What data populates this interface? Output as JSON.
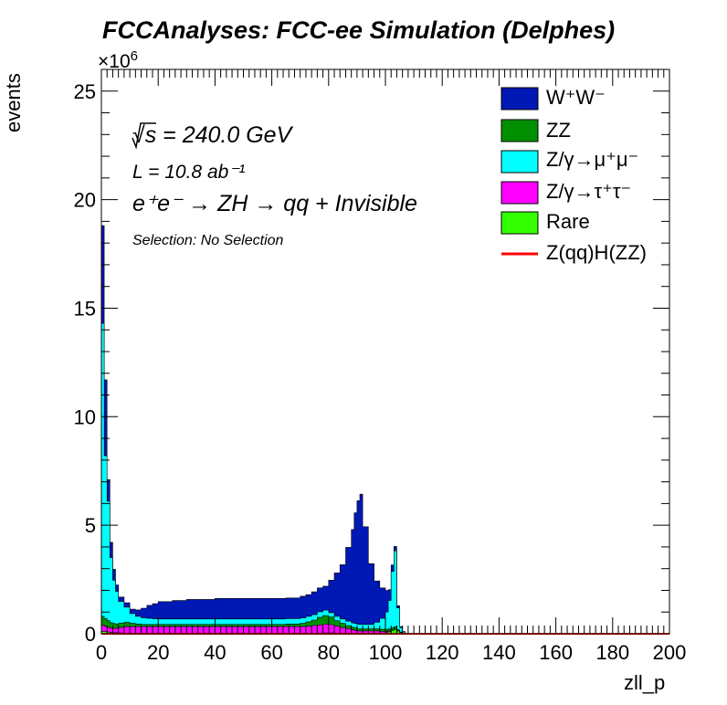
{
  "chart_data": {
    "type": "bar",
    "title": "FCCAnalyses: FCC-ee Simulation (Delphes)",
    "xlabel": "zll_p",
    "ylabel": "events",
    "y_multiplier": "×10^6",
    "xlim": [
      0,
      200
    ],
    "ylim": [
      0,
      26
    ],
    "x_ticks": [
      "0",
      "20",
      "40",
      "60",
      "80",
      "100",
      "120",
      "140",
      "160",
      "180",
      "200"
    ],
    "y_ticks": [
      "0",
      "5",
      "10",
      "15",
      "20",
      "25"
    ],
    "stacked": true,
    "legend_position": "top-right",
    "annotations": {
      "energy": "√s = 240.0 GeV",
      "lumi": "L = 10.8 ab⁻¹",
      "process": "e⁺e⁻ → ZH → qq + Invisible",
      "selection": "Selection: No Selection"
    },
    "x": [
      0,
      1,
      2,
      3,
      4,
      5,
      6,
      8,
      10,
      12,
      14,
      16,
      18,
      20,
      25,
      30,
      40,
      50,
      60,
      65,
      70,
      72,
      74,
      76,
      78,
      80,
      82,
      84,
      86,
      88,
      89,
      90,
      91,
      92,
      94,
      96,
      98,
      100,
      101,
      102,
      103,
      104,
      105,
      106,
      107,
      108,
      110,
      120,
      140,
      160,
      180,
      200
    ],
    "series": [
      {
        "name": "Rare",
        "color": "#33ff00",
        "values": [
          0.1,
          0.1,
          0.08,
          0.06,
          0.05,
          0.05,
          0.04,
          0.03,
          0.03,
          0.03,
          0.03,
          0.03,
          0.03,
          0.03,
          0.03,
          0.03,
          0.03,
          0.03,
          0.03,
          0.03,
          0.03,
          0.03,
          0.03,
          0.03,
          0.04,
          0.04,
          0.03,
          0.03,
          0.03,
          0.03,
          0.03,
          0.03,
          0.03,
          0.03,
          0.03,
          0.03,
          0.03,
          0.05,
          0.1,
          0.15,
          0.2,
          0.12,
          0.05,
          0.02,
          0.01,
          0,
          0,
          0,
          0,
          0,
          0,
          0
        ]
      },
      {
        "name": "Z/γ→τ⁺τ⁻",
        "color": "#ff00ff",
        "values": [
          0.3,
          0.25,
          0.22,
          0.2,
          0.2,
          0.2,
          0.25,
          0.3,
          0.3,
          0.3,
          0.3,
          0.3,
          0.3,
          0.3,
          0.3,
          0.3,
          0.3,
          0.3,
          0.3,
          0.3,
          0.3,
          0.32,
          0.35,
          0.38,
          0.4,
          0.38,
          0.32,
          0.25,
          0.2,
          0.15,
          0.12,
          0.1,
          0.1,
          0.1,
          0.1,
          0.1,
          0.08,
          0.05,
          0.03,
          0.02,
          0.02,
          0.02,
          0.01,
          0,
          0,
          0,
          0,
          0,
          0,
          0,
          0,
          0
        ]
      },
      {
        "name": "ZZ",
        "color": "#008f00",
        "values": [
          0.4,
          0.35,
          0.3,
          0.25,
          0.22,
          0.2,
          0.2,
          0.2,
          0.15,
          0.12,
          0.1,
          0.1,
          0.1,
          0.1,
          0.1,
          0.1,
          0.1,
          0.1,
          0.1,
          0.12,
          0.15,
          0.2,
          0.25,
          0.35,
          0.4,
          0.35,
          0.25,
          0.2,
          0.15,
          0.12,
          0.12,
          0.1,
          0.1,
          0.1,
          0.1,
          0.1,
          0.1,
          0.1,
          0.1,
          0.1,
          0.1,
          0.05,
          0.02,
          0.01,
          0,
          0,
          0,
          0,
          0,
          0,
          0,
          0
        ]
      },
      {
        "name": "Z/γ→μ⁺μ⁻",
        "color": "#00ffff",
        "values": [
          13.5,
          7.5,
          5.5,
          3,
          2,
          1.5,
          1.0,
          0.7,
          0.45,
          0.35,
          0.3,
          0.28,
          0.26,
          0.25,
          0.25,
          0.25,
          0.25,
          0.25,
          0.25,
          0.25,
          0.25,
          0.25,
          0.25,
          0.25,
          0.25,
          0.2,
          0.2,
          0.2,
          0.2,
          0.2,
          0.2,
          0.2,
          0.2,
          0.2,
          0.2,
          0.3,
          0.5,
          0.8,
          1.3,
          2.6,
          3.5,
          1.0,
          0.2,
          0.05,
          0.01,
          0,
          0,
          0,
          0,
          0,
          0,
          0
        ]
      },
      {
        "name": "W⁺W⁻",
        "color": "#0018b4",
        "values": [
          4.5,
          3.5,
          1.0,
          0.7,
          0.5,
          0.3,
          0.2,
          0.2,
          0.2,
          0.3,
          0.45,
          0.6,
          0.7,
          0.8,
          0.85,
          0.9,
          0.95,
          0.95,
          0.95,
          0.95,
          1.0,
          1.0,
          1.05,
          1.1,
          1.1,
          1.5,
          2.0,
          2.5,
          3.4,
          4.3,
          5.1,
          5.7,
          6.0,
          4.5,
          2.8,
          1.9,
          1.4,
          1.0,
          0.5,
          0.3,
          0.2,
          0.1,
          0.05,
          0.02,
          0.01,
          0,
          0,
          0,
          0,
          0,
          0,
          0
        ]
      },
      {
        "name": "Z(qq)H(ZZ)",
        "color": "#ff0000",
        "style": "line",
        "values": [
          0,
          0,
          0,
          0,
          0,
          0,
          0,
          0,
          0,
          0,
          0,
          0,
          0,
          0,
          0,
          0,
          0,
          0,
          0,
          0,
          0,
          0,
          0,
          0,
          0,
          0,
          0,
          0,
          0,
          0,
          0,
          0,
          0,
          0,
          0,
          0,
          0,
          0,
          0,
          0,
          0,
          0,
          0,
          0,
          0,
          0,
          0,
          0,
          0,
          0,
          0,
          0
        ]
      }
    ]
  },
  "legend": {
    "ww": "W⁺W⁻",
    "zz": "ZZ",
    "mumu": "Z/γ→μ⁺μ⁻",
    "tautau": "Z/γ→τ⁺τ⁻",
    "rare": "Rare",
    "zh": "Z(qq)H(ZZ)"
  }
}
